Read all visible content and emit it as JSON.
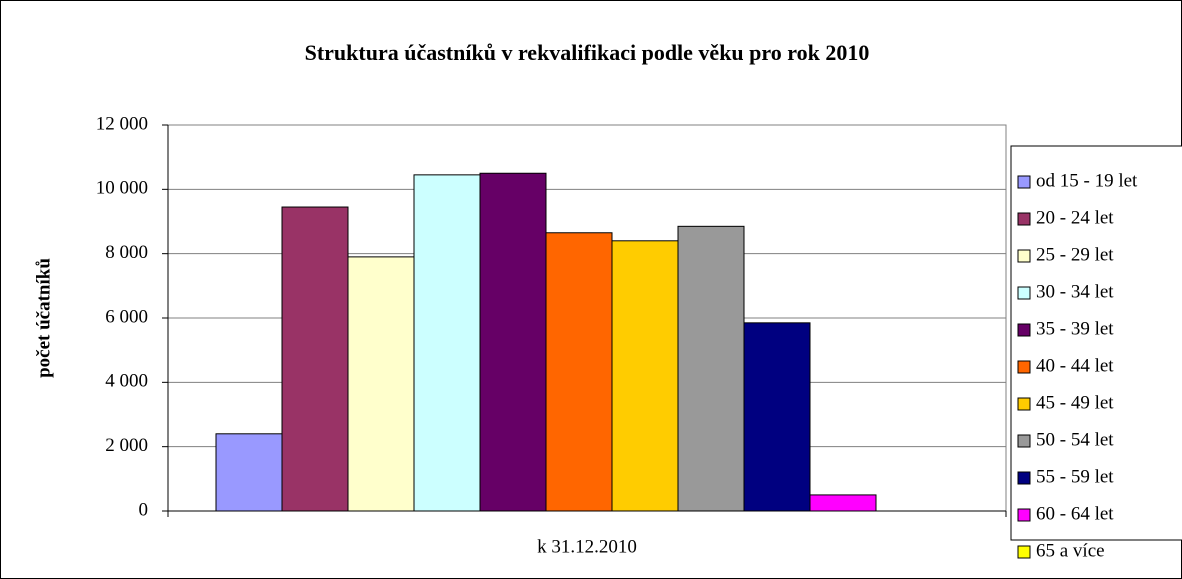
{
  "chart_data": {
    "type": "bar",
    "title": "Struktura účastníků v rekvalifikaci podle věku pro rok 2010",
    "y_label": "počet účatníků",
    "categories": [
      "k 31.12.2010"
    ],
    "series": [
      {
        "name": "od 15 - 19 let",
        "color": "#9999ff",
        "values": [
          2400
        ]
      },
      {
        "name": "20 - 24 let",
        "color": "#993366",
        "values": [
          9450
        ]
      },
      {
        "name": "25 - 29 let",
        "color": "#ffffcc",
        "values": [
          7900
        ]
      },
      {
        "name": "30 - 34 let",
        "color": "#ccffff",
        "values": [
          10450
        ]
      },
      {
        "name": "35 - 39 let",
        "color": "#660066",
        "values": [
          10500
        ]
      },
      {
        "name": "40 - 44 let",
        "color": "#ff6600",
        "values": [
          8650
        ]
      },
      {
        "name": "45 - 49 let",
        "color": "#ffcc00",
        "values": [
          8400
        ]
      },
      {
        "name": "50 - 54 let",
        "color": "#999999",
        "values": [
          8850
        ]
      },
      {
        "name": "55 - 59 let",
        "color": "#000080",
        "values": [
          5850
        ]
      },
      {
        "name": "60 - 64 let",
        "color": "#ff00ff",
        "values": [
          500
        ]
      },
      {
        "name": "65 a více",
        "color": "#ffff00",
        "values": [
          0
        ]
      }
    ],
    "ylim": [
      0,
      12000
    ],
    "yticks": [
      0,
      {
        "value": 2000,
        "label": "2 000"
      },
      {
        "value": 4000,
        "label": "4 000"
      },
      {
        "value": 6000,
        "label": "6 000"
      },
      {
        "value": 8000,
        "label": "8 000"
      },
      {
        "value": 10000,
        "label": "10 000"
      },
      {
        "value": 12000,
        "label": "12 000"
      }
    ],
    "grid": true,
    "legend": "right"
  }
}
